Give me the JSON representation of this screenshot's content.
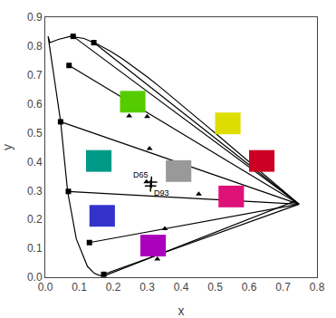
{
  "chart_data": {
    "type": "line",
    "xlabel": "x",
    "ylabel": "y",
    "xlim": [
      0.0,
      0.8
    ],
    "ylim": [
      0.0,
      0.9
    ],
    "xticks": [
      {
        "value": 0.0,
        "label": "0.0"
      },
      0.1,
      0.2,
      0.3,
      0.4,
      0.5,
      0.6,
      0.7,
      0.8
    ],
    "yticks": [
      {
        "value": 0.0,
        "label": "0.0"
      },
      0.1,
      0.2,
      0.3,
      0.4,
      0.5,
      0.6,
      0.7,
      0.8,
      0.9
    ],
    "grid": false,
    "series": [
      {
        "type": "line",
        "color": "#000000",
        "x": [
          0.1741,
          0.1738,
          0.1736,
          0.1713,
          0.1669,
          0.1585,
          0.144,
          0.1241,
          0.0913,
          0.0657,
          0.0452,
          0.0235,
          0.0082,
          0.0139,
          0.0386,
          0.0743,
          0.1142,
          0.1547,
          0.1929,
          0.2296,
          0.2658,
          0.3016,
          0.3373,
          0.3731,
          0.4087,
          0.4441,
          0.4788,
          0.5125,
          0.5448,
          0.5752,
          0.6029,
          0.627,
          0.6482,
          0.6658,
          0.6801,
          0.6915,
          0.7006,
          0.7079,
          0.714,
          0.719,
          0.723,
          0.726,
          0.7283,
          0.73,
          0.7311,
          0.732,
          0.7327,
          0.7334,
          0.734,
          0.7344,
          0.7347,
          0.735,
          0.7353,
          0.7355,
          0.7356,
          0.7358,
          0.1741
        ],
        "y": [
          0.005,
          0.005,
          0.0049,
          0.0048,
          0.0051,
          0.0069,
          0.0138,
          0.0375,
          0.1327,
          0.2971,
          0.5384,
          0.7127,
          0.8338,
          0.812,
          0.8233,
          0.8338,
          0.8262,
          0.8059,
          0.7816,
          0.7543,
          0.7243,
          0.6923,
          0.6589,
          0.6245,
          0.5896,
          0.5547,
          0.5202,
          0.4866,
          0.4544,
          0.4242,
          0.3965,
          0.3725,
          0.3514,
          0.334,
          0.3197,
          0.3083,
          0.2993,
          0.292,
          0.2859,
          0.2809,
          0.277,
          0.274,
          0.2717,
          0.27,
          0.2689,
          0.268,
          0.2673,
          0.2666,
          0.266,
          0.2656,
          0.2653,
          0.265,
          0.2647,
          0.2645,
          0.2644,
          0.2642,
          0.005
        ]
      },
      {
        "type": "line",
        "color": "#000000",
        "x": [
          0.747,
          0.082
        ],
        "y": [
          0.253,
          0.8338
        ]
      },
      {
        "type": "line",
        "color": "#000000",
        "x": [
          0.747,
          0.143
        ],
        "y": [
          0.253,
          0.812
        ]
      },
      {
        "type": "line",
        "color": "#000000",
        "x": [
          0.747,
          0.07
        ],
        "y": [
          0.253,
          0.733
        ]
      },
      {
        "type": "line",
        "color": "#000000",
        "x": [
          0.747,
          0.045
        ],
        "y": [
          0.253,
          0.538
        ]
      },
      {
        "type": "line",
        "color": "#000000",
        "x": [
          0.747,
          0.068
        ],
        "y": [
          0.253,
          0.297
        ]
      },
      {
        "type": "line",
        "color": "#000000",
        "x": [
          0.747,
          0.13
        ],
        "y": [
          0.253,
          0.12
        ]
      },
      {
        "type": "line",
        "color": "#000000",
        "x": [
          0.747,
          0.172
        ],
        "y": [
          0.253,
          0.01
        ]
      },
      {
        "type": "scatter",
        "marker": "triangle",
        "color": "#000000",
        "x": [
          0.247,
          0.3,
          0.307,
          0.298,
          0.452,
          0.352,
          0.33
        ],
        "y": [
          0.558,
          0.556,
          0.445,
          0.33,
          0.288,
          0.168,
          0.063
        ]
      },
      {
        "type": "scatter",
        "marker": "square",
        "color": "#000000",
        "x": [
          0.082,
          0.143,
          0.07,
          0.045,
          0.068,
          0.13,
          0.172
        ],
        "y": [
          0.8338,
          0.812,
          0.733,
          0.538,
          0.297,
          0.12,
          0.01
        ]
      },
      {
        "type": "scatter",
        "marker": "plus",
        "color": "#000000",
        "x": [
          0.3127,
          0.31
        ],
        "y": [
          0.329,
          0.3163
        ],
        "labels": [
          "D65",
          "D93"
        ]
      }
    ],
    "patches": [
      {
        "x": 0.22,
        "y": 0.57,
        "width": 0.075,
        "height": 0.075,
        "color": "#55cc00"
      },
      {
        "x": 0.12,
        "y": 0.365,
        "width": 0.075,
        "height": 0.075,
        "color": "#009988"
      },
      {
        "x": 0.13,
        "y": 0.175,
        "width": 0.075,
        "height": 0.075,
        "color": "#3333cc"
      },
      {
        "x": 0.28,
        "y": 0.072,
        "width": 0.075,
        "height": 0.075,
        "color": "#aa00bb"
      },
      {
        "x": 0.51,
        "y": 0.242,
        "width": 0.075,
        "height": 0.075,
        "color": "#dd1177"
      },
      {
        "x": 0.6,
        "y": 0.365,
        "width": 0.075,
        "height": 0.075,
        "color": "#cc0022"
      },
      {
        "x": 0.5,
        "y": 0.495,
        "width": 0.075,
        "height": 0.075,
        "color": "#dddd00"
      },
      {
        "x": 0.355,
        "y": 0.33,
        "width": 0.075,
        "height": 0.075,
        "color": "#999999"
      }
    ]
  }
}
